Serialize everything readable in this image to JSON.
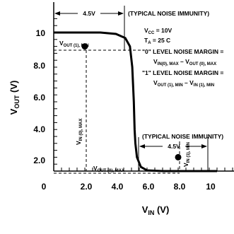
{
  "chart_data": {
    "type": "line",
    "xlabel": "V_IN (V)",
    "ylabel": "V_OUT (V)",
    "xlim": [
      0,
      10.5
    ],
    "ylim": [
      0,
      11
    ],
    "x_ticks": [
      "0",
      "2.0",
      "4.0",
      "6.0",
      "8.0",
      "10"
    ],
    "y_ticks": [
      "10",
      "8.0",
      "6.0",
      "4.0",
      "2.0"
    ],
    "series": [
      {
        "x": [
          0,
          3.0,
          4.0,
          4.6,
          4.9,
          5.05,
          5.15,
          5.2,
          5.25,
          5.35,
          5.6,
          6.0,
          7.0,
          10.5
        ],
        "y": [
          10,
          10,
          9.9,
          9.6,
          9.0,
          7.5,
          5.0,
          3.0,
          2.0,
          1.0,
          0.3,
          0.05,
          0,
          0
        ]
      }
    ],
    "points": [
      {
        "label": "V_OUT(1), MIN",
        "x": 2.0,
        "y": 9.0
      },
      {
        "label": "V_OUT(0), MAX",
        "x": 8.0,
        "y": 1.0
      }
    ],
    "annotations": {
      "noise_high_value": "4.5V",
      "noise_high_label": "(TYPICAL NOISE IMMUNITY)",
      "noise_low_value": "4.5V",
      "noise_low_label": "(TYPICAL NOISE IMMUNITY)",
      "vcc": "V_CC = 10V",
      "ta": "T_A = 25 C",
      "zero_margin_title": "\"0\" LEVEL NOISE MARGIN =",
      "zero_margin_formula": "V_IN(0), MAX – V_OUT(0), MAX",
      "one_margin_title": "\"1\" LEVEL NOISE MARGIN =",
      "one_margin_formula": "V_OUT(1), MIN – V_IN(1), MIN",
      "vin0max": "V_IN(0), MAX",
      "vin1min": "V_IN(1), MIN"
    }
  }
}
